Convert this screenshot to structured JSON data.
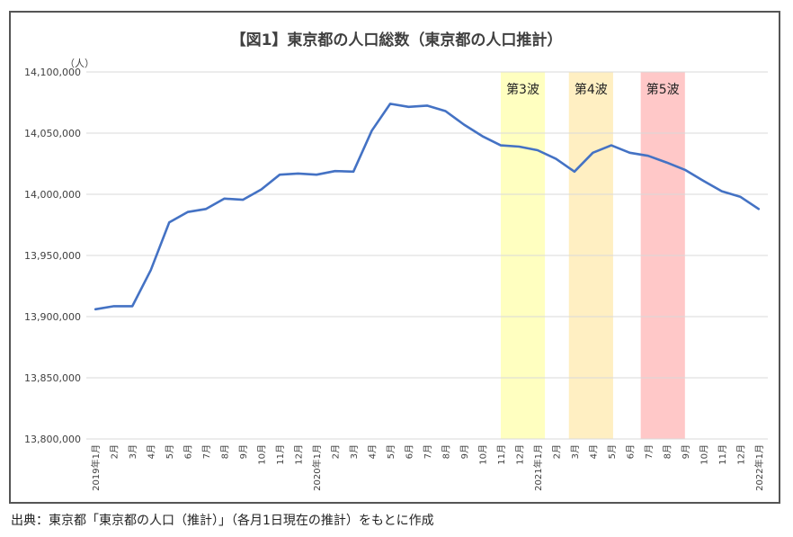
{
  "chart_data": {
    "type": "line",
    "title": "【図1】東京都の人口総数（東京都の人口推計）",
    "unit": "（人）",
    "ylim": [
      13800000,
      14100000
    ],
    "yticks": [
      13800000,
      13850000,
      13900000,
      13950000,
      14000000,
      14050000,
      14100000
    ],
    "ytick_labels": [
      "13,800,000",
      "13,850,000",
      "13,900,000",
      "13,950,000",
      "14,000,000",
      "14,050,000",
      "14,100,000"
    ],
    "grid": true,
    "categories": [
      "2019年1月",
      "2月",
      "3月",
      "4月",
      "5月",
      "6月",
      "7月",
      "8月",
      "9月",
      "10月",
      "11月",
      "12月",
      "2020年1月",
      "2月",
      "3月",
      "4月",
      "5月",
      "6月",
      "7月",
      "8月",
      "9月",
      "10月",
      "11月",
      "12月",
      "2021年1月",
      "2月",
      "3月",
      "4月",
      "5月",
      "6月",
      "7月",
      "8月",
      "9月",
      "10月",
      "11月",
      "12月",
      "2022年1月"
    ],
    "series": [
      {
        "color": "#4472c4",
        "values": [
          13906000,
          13908500,
          13908500,
          13938000,
          13977000,
          13985500,
          13988000,
          13996500,
          13995500,
          14004000,
          14016000,
          14017000,
          14016000,
          14019000,
          14018500,
          14052000,
          14074000,
          14071500,
          14072500,
          14068000,
          14057000,
          14047500,
          14040000,
          14039000,
          14036000,
          14029000,
          14018500,
          14034000,
          14040000,
          14034000,
          14031500,
          14026000,
          14020000,
          14011000,
          14002500,
          13998000,
          13988000
        ]
      }
    ],
    "bands": [
      {
        "label": "第3波",
        "start": 22.5,
        "end": 24.9,
        "color": "#ffffc0"
      },
      {
        "label": "第4波",
        "start": 26.2,
        "end": 28.6,
        "color": "#ffefc2"
      },
      {
        "label": "第5波",
        "start": 30.1,
        "end": 32.5,
        "color": "#ffc8c8"
      }
    ]
  },
  "source_note": "出典：東京都「東京都の人口（推計）」（各月1日現在の推計）をもとに作成"
}
